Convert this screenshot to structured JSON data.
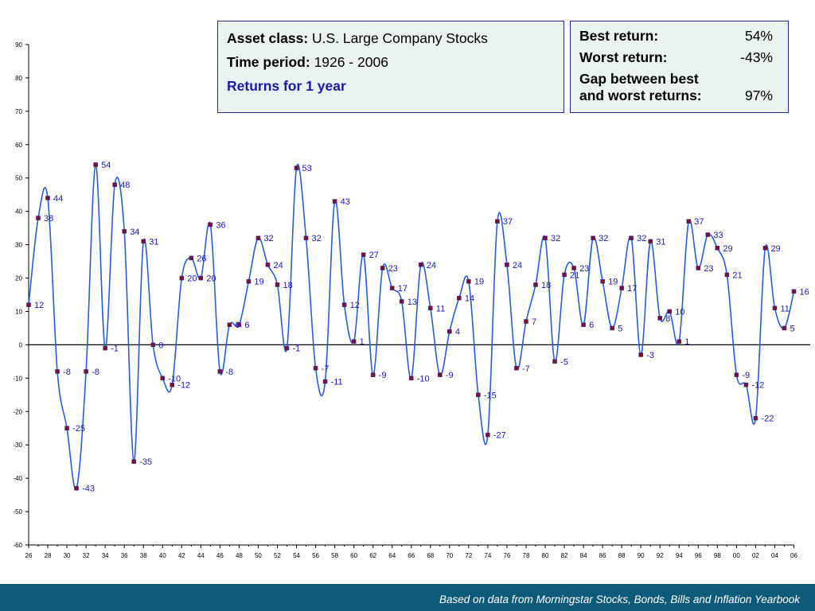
{
  "asset_box": {
    "asset_label": "Asset class:",
    "asset_value": "U.S. Large Company Stocks",
    "period_label": "Time period:",
    "period_value": "1926  - 2006",
    "returns_title": "Returns for 1 year"
  },
  "stats_box": {
    "best_label": "Best return:",
    "best_value": "54%",
    "worst_label": "Worst return:",
    "worst_value": "-43%",
    "gap_label_line1": "Gap between best",
    "gap_label_line2": "and worst returns:",
    "gap_value": "97%"
  },
  "footer": {
    "text": "Based on data from Morningstar Stocks, Bonds, Bills and Inflation Yearbook"
  },
  "colors": {
    "line": "#2a5cd6",
    "marker": "#7a1030",
    "label": "#1a1aa6",
    "footer_bg": "#0e5a7a",
    "box_bg": "#eaf3f2",
    "box_border": "#1f2f8f"
  },
  "chart_data": {
    "type": "line",
    "title": "",
    "xlabel": "",
    "ylabel": "",
    "ylim": [
      -60,
      90
    ],
    "yticks": [
      90,
      80,
      70,
      60,
      50,
      40,
      30,
      20,
      10,
      0,
      -10,
      -20,
      -30,
      -40,
      -50,
      -60
    ],
    "xlim": [
      1926,
      2006
    ],
    "xticks": [
      "26",
      "28",
      "30",
      "32",
      "34",
      "36",
      "38",
      "40",
      "42",
      "44",
      "46",
      "48",
      "50",
      "52",
      "54",
      "56",
      "58",
      "60",
      "62",
      "64",
      "66",
      "68",
      "70",
      "72",
      "74",
      "76",
      "78",
      "80",
      "82",
      "84",
      "86",
      "88",
      "90",
      "92",
      "94",
      "96",
      "98",
      "00",
      "02",
      "04",
      "06"
    ],
    "grid": false,
    "smooth": true,
    "series": [
      {
        "name": "",
        "x": [
          1926,
          1927,
          1928,
          1929,
          1930,
          1931,
          1932,
          1933,
          1934,
          1935,
          1936,
          1937,
          1938,
          1939,
          1940,
          1941,
          1942,
          1943,
          1944,
          1945,
          1946,
          1947,
          1948,
          1949,
          1950,
          1951,
          1952,
          1953,
          1954,
          1955,
          1956,
          1957,
          1958,
          1959,
          1960,
          1961,
          1962,
          1963,
          1964,
          1965,
          1966,
          1967,
          1968,
          1969,
          1970,
          1971,
          1972,
          1973,
          1974,
          1975,
          1976,
          1977,
          1978,
          1979,
          1980,
          1981,
          1982,
          1983,
          1984,
          1985,
          1986,
          1987,
          1988,
          1989,
          1990,
          1991,
          1992,
          1993,
          1994,
          1995,
          1996,
          1997,
          1998,
          1999,
          2000,
          2001,
          2002,
          2003,
          2004,
          2005,
          2006
        ],
        "values": [
          12,
          38,
          44,
          -8,
          -25,
          -43,
          -8,
          54,
          -1,
          48,
          34,
          -35,
          31,
          0,
          -10,
          -12,
          20,
          26,
          20,
          36,
          -8,
          6,
          6,
          19,
          32,
          24,
          18,
          -1,
          53,
          32,
          -7,
          -11,
          43,
          12,
          1,
          27,
          -9,
          23,
          17,
          13,
          -10,
          24,
          11,
          -9,
          4,
          14,
          19,
          -15,
          -27,
          37,
          24,
          -7,
          7,
          18,
          32,
          -5,
          21,
          23,
          6,
          32,
          19,
          5,
          17,
          32,
          -3,
          31,
          8,
          10,
          1,
          37,
          23,
          33,
          29,
          21,
          -9,
          -12,
          -22,
          29,
          11,
          5,
          16
        ]
      }
    ]
  }
}
